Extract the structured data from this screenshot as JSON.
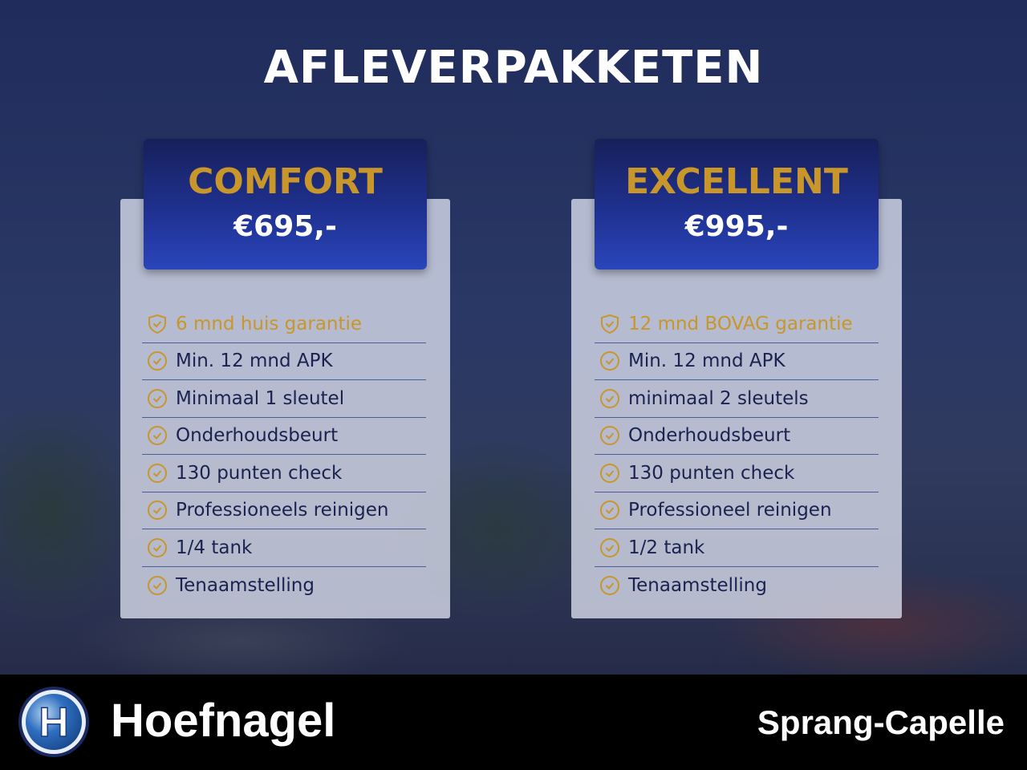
{
  "title": "AFLEVERPAKKETEN",
  "colors": {
    "gold": "#c8962a",
    "header_blue": "#1f3190",
    "footer": "#000000"
  },
  "packages": [
    {
      "name": "COMFORT",
      "price": "€695,-",
      "items": [
        {
          "label": "6 mnd huis garantie",
          "icon": "shield-check-icon"
        },
        {
          "label": "Min. 12 mnd APK",
          "icon": "check-circle-icon"
        },
        {
          "label": "Minimaal 1 sleutel",
          "icon": "check-circle-icon"
        },
        {
          "label": "Onderhoudsbeurt",
          "icon": "check-circle-icon"
        },
        {
          "label": "130 punten check",
          "icon": "check-circle-icon"
        },
        {
          "label": "Professioneels reinigen",
          "icon": "check-circle-icon"
        },
        {
          "label": "1/4 tank",
          "icon": "check-circle-icon"
        },
        {
          "label": "Tenaamstelling",
          "icon": "check-circle-icon"
        }
      ]
    },
    {
      "name": "EXCELLENT",
      "price": "€995,-",
      "items": [
        {
          "label": "12 mnd BOVAG garantie",
          "icon": "shield-check-icon"
        },
        {
          "label": "Min. 12 mnd APK",
          "icon": "check-circle-icon"
        },
        {
          "label": "minimaal 2 sleutels",
          "icon": "check-circle-icon"
        },
        {
          "label": "Onderhoudsbeurt",
          "icon": "check-circle-icon"
        },
        {
          "label": "130 punten check",
          "icon": "check-circle-icon"
        },
        {
          "label": "Professioneel reinigen",
          "icon": "check-circle-icon"
        },
        {
          "label": "1/2 tank",
          "icon": "check-circle-icon"
        },
        {
          "label": "Tenaamstelling",
          "icon": "check-circle-icon"
        }
      ]
    }
  ],
  "footer": {
    "brand": "Hoefnagel",
    "logo_letter": "H",
    "location": "Sprang-Capelle"
  }
}
